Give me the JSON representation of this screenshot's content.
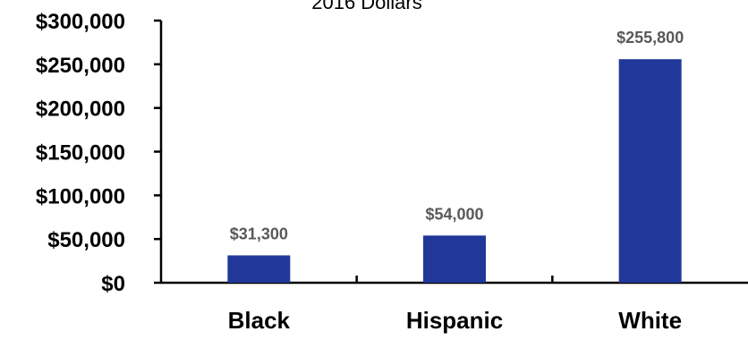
{
  "chart_data": {
    "type": "bar",
    "subtitle": "2016 Dollars",
    "categories": [
      "Black",
      "Hispanic",
      "White"
    ],
    "values": [
      31300,
      54000,
      255800
    ],
    "data_labels": [
      "$31,300",
      "$54,000",
      "$255,800"
    ],
    "ylim": [
      0,
      300000
    ],
    "yticks": [
      0,
      50000,
      100000,
      150000,
      200000,
      250000,
      300000
    ],
    "ytick_labels": [
      "$0",
      "$50,000",
      "$100,000",
      "$150,000",
      "$200,000",
      "$250,000",
      "$300,000"
    ],
    "grid": false,
    "legend": "none",
    "bar_color": "#22379A",
    "axis_color": "#000000",
    "data_label_color": "#595959"
  }
}
